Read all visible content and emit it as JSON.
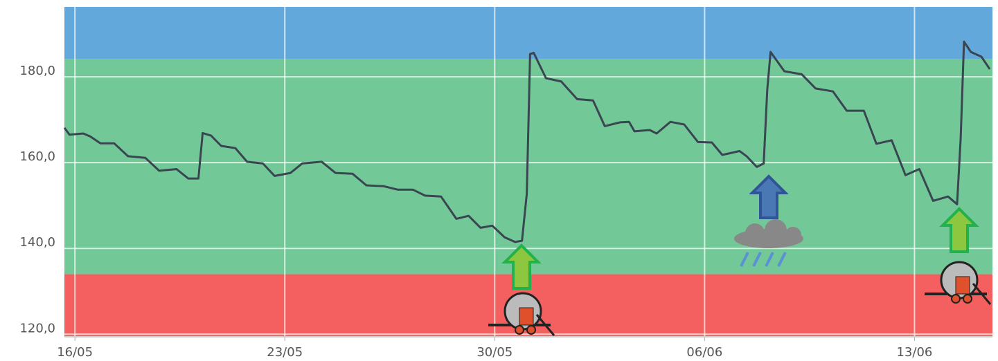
{
  "chart_data": {
    "type": "line",
    "xlim": [
      -0.35,
      30.6
    ],
    "ylim": [
      119.4,
      196.3
    ],
    "xticks": [
      {
        "value": 0,
        "label": "16/05"
      },
      {
        "value": 7,
        "label": "23/05"
      },
      {
        "value": 14,
        "label": "30/05"
      },
      {
        "value": 21,
        "label": "06/06"
      },
      {
        "value": 28,
        "label": "13/06"
      }
    ],
    "yticks": [
      {
        "value": 120,
        "label": "120,0"
      },
      {
        "value": 140,
        "label": "140,0"
      },
      {
        "value": 160,
        "label": "160,0"
      },
      {
        "value": 180,
        "label": "180,0"
      }
    ],
    "grid": true,
    "bands": [
      {
        "from": 119.4,
        "to": 134,
        "color": "#f45f5f"
      },
      {
        "from": 134,
        "to": 184.2,
        "color": "#72c896"
      },
      {
        "from": 184.2,
        "to": 196.3,
        "color": "#62a8da"
      }
    ],
    "x": [
      -0.35,
      -0.18,
      0.28,
      0.51,
      0.85,
      1.31,
      1.77,
      2.35,
      2.81,
      3.39,
      3.78,
      4.12,
      4.26,
      4.54,
      4.88,
      5.35,
      5.74,
      6.27,
      6.66,
      7.19,
      7.58,
      8.23,
      8.69,
      9.26,
      9.72,
      10.3,
      10.76,
      11.27,
      11.68,
      12.21,
      12.72,
      13.13,
      13.53,
      13.92,
      14.33,
      14.68,
      14.91,
      15.07,
      15.18,
      15.3,
      15.71,
      16.22,
      16.75,
      17.28,
      17.67,
      18.18,
      18.48,
      18.66,
      19.17,
      19.4,
      19.86,
      20.32,
      20.78,
      21.24,
      21.59,
      22.17,
      22.4,
      22.74,
      22.97,
      23.09,
      23.2,
      23.66,
      24.24,
      24.7,
      25.28,
      25.74,
      26.31,
      26.73,
      27.24,
      27.7,
      28.16,
      28.62,
      29.12,
      29.42,
      29.54,
      29.65,
      29.88,
      30.23,
      30.51
    ],
    "series": [
      {
        "color": "#3a4552",
        "values": [
          168.1,
          166.5,
          166.8,
          166.1,
          164.5,
          164.5,
          161.5,
          161.1,
          158.1,
          158.5,
          156.3,
          156.3,
          166.9,
          166.3,
          163.9,
          163.4,
          160.2,
          159.8,
          156.9,
          157.6,
          159.8,
          160.2,
          157.6,
          157.4,
          154.7,
          154.5,
          153.7,
          153.7,
          152.3,
          152.1,
          146.9,
          147.6,
          144.8,
          145.3,
          142.6,
          141.5,
          141.8,
          152.7,
          185.3,
          185.6,
          179.7,
          178.9,
          174.8,
          174.5,
          168.5,
          169.4,
          169.5,
          167.3,
          167.6,
          166.8,
          169.5,
          168.9,
          164.8,
          164.7,
          161.8,
          162.7,
          161.5,
          159.0,
          159.8,
          176.9,
          185.8,
          181.3,
          180.6,
          177.3,
          176.6,
          172.1,
          172.1,
          164.4,
          165.2,
          157.1,
          158.5,
          151.1,
          152.1,
          150.3,
          165.6,
          188.2,
          185.8,
          184.7,
          181.8
        ]
      }
    ]
  }
}
